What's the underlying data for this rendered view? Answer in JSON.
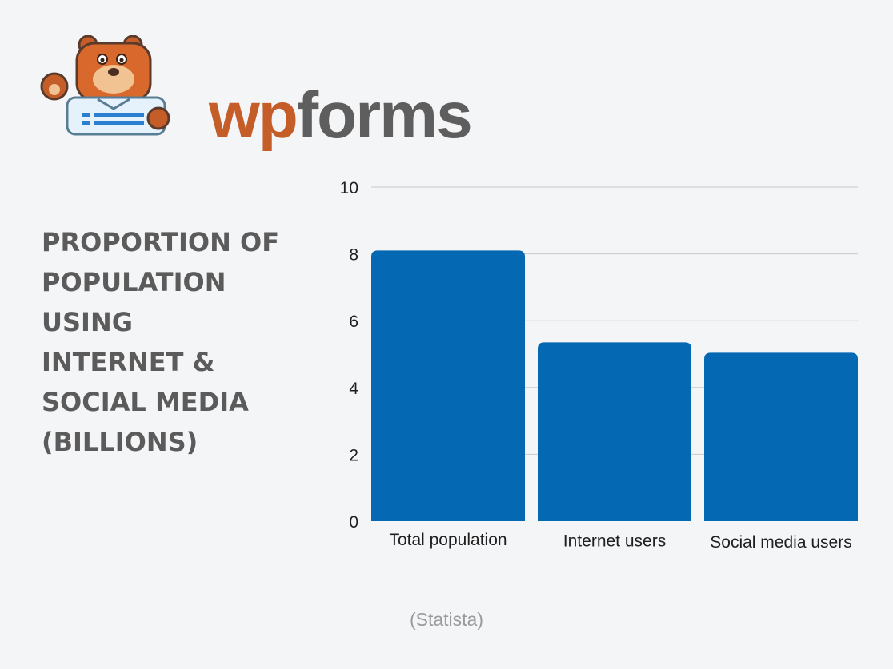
{
  "brand": {
    "wordmark_part1": "wp",
    "wordmark_part2": "forms",
    "mascot_icon": "bear-mascot-icon",
    "colors": {
      "orange": "#c45d28",
      "gray": "#5e5e5e",
      "blue": "#2b7fd0"
    }
  },
  "title": "PROPORTION OF\nPOPULATION\nUSING\nINTERNET &\nSOCIAL MEDIA\n(BILLIONS)",
  "source": "(Statista)",
  "chart_data": {
    "type": "bar",
    "categories": [
      "Total population",
      "Internet users",
      "Social media users"
    ],
    "values": [
      8.1,
      5.35,
      5.04
    ],
    "ylim": [
      0,
      10
    ],
    "yticks": [
      0,
      2,
      4,
      6,
      8,
      10
    ],
    "grid": true,
    "bar_color": "#0568b3",
    "grid_color": "#c9c9c9"
  }
}
